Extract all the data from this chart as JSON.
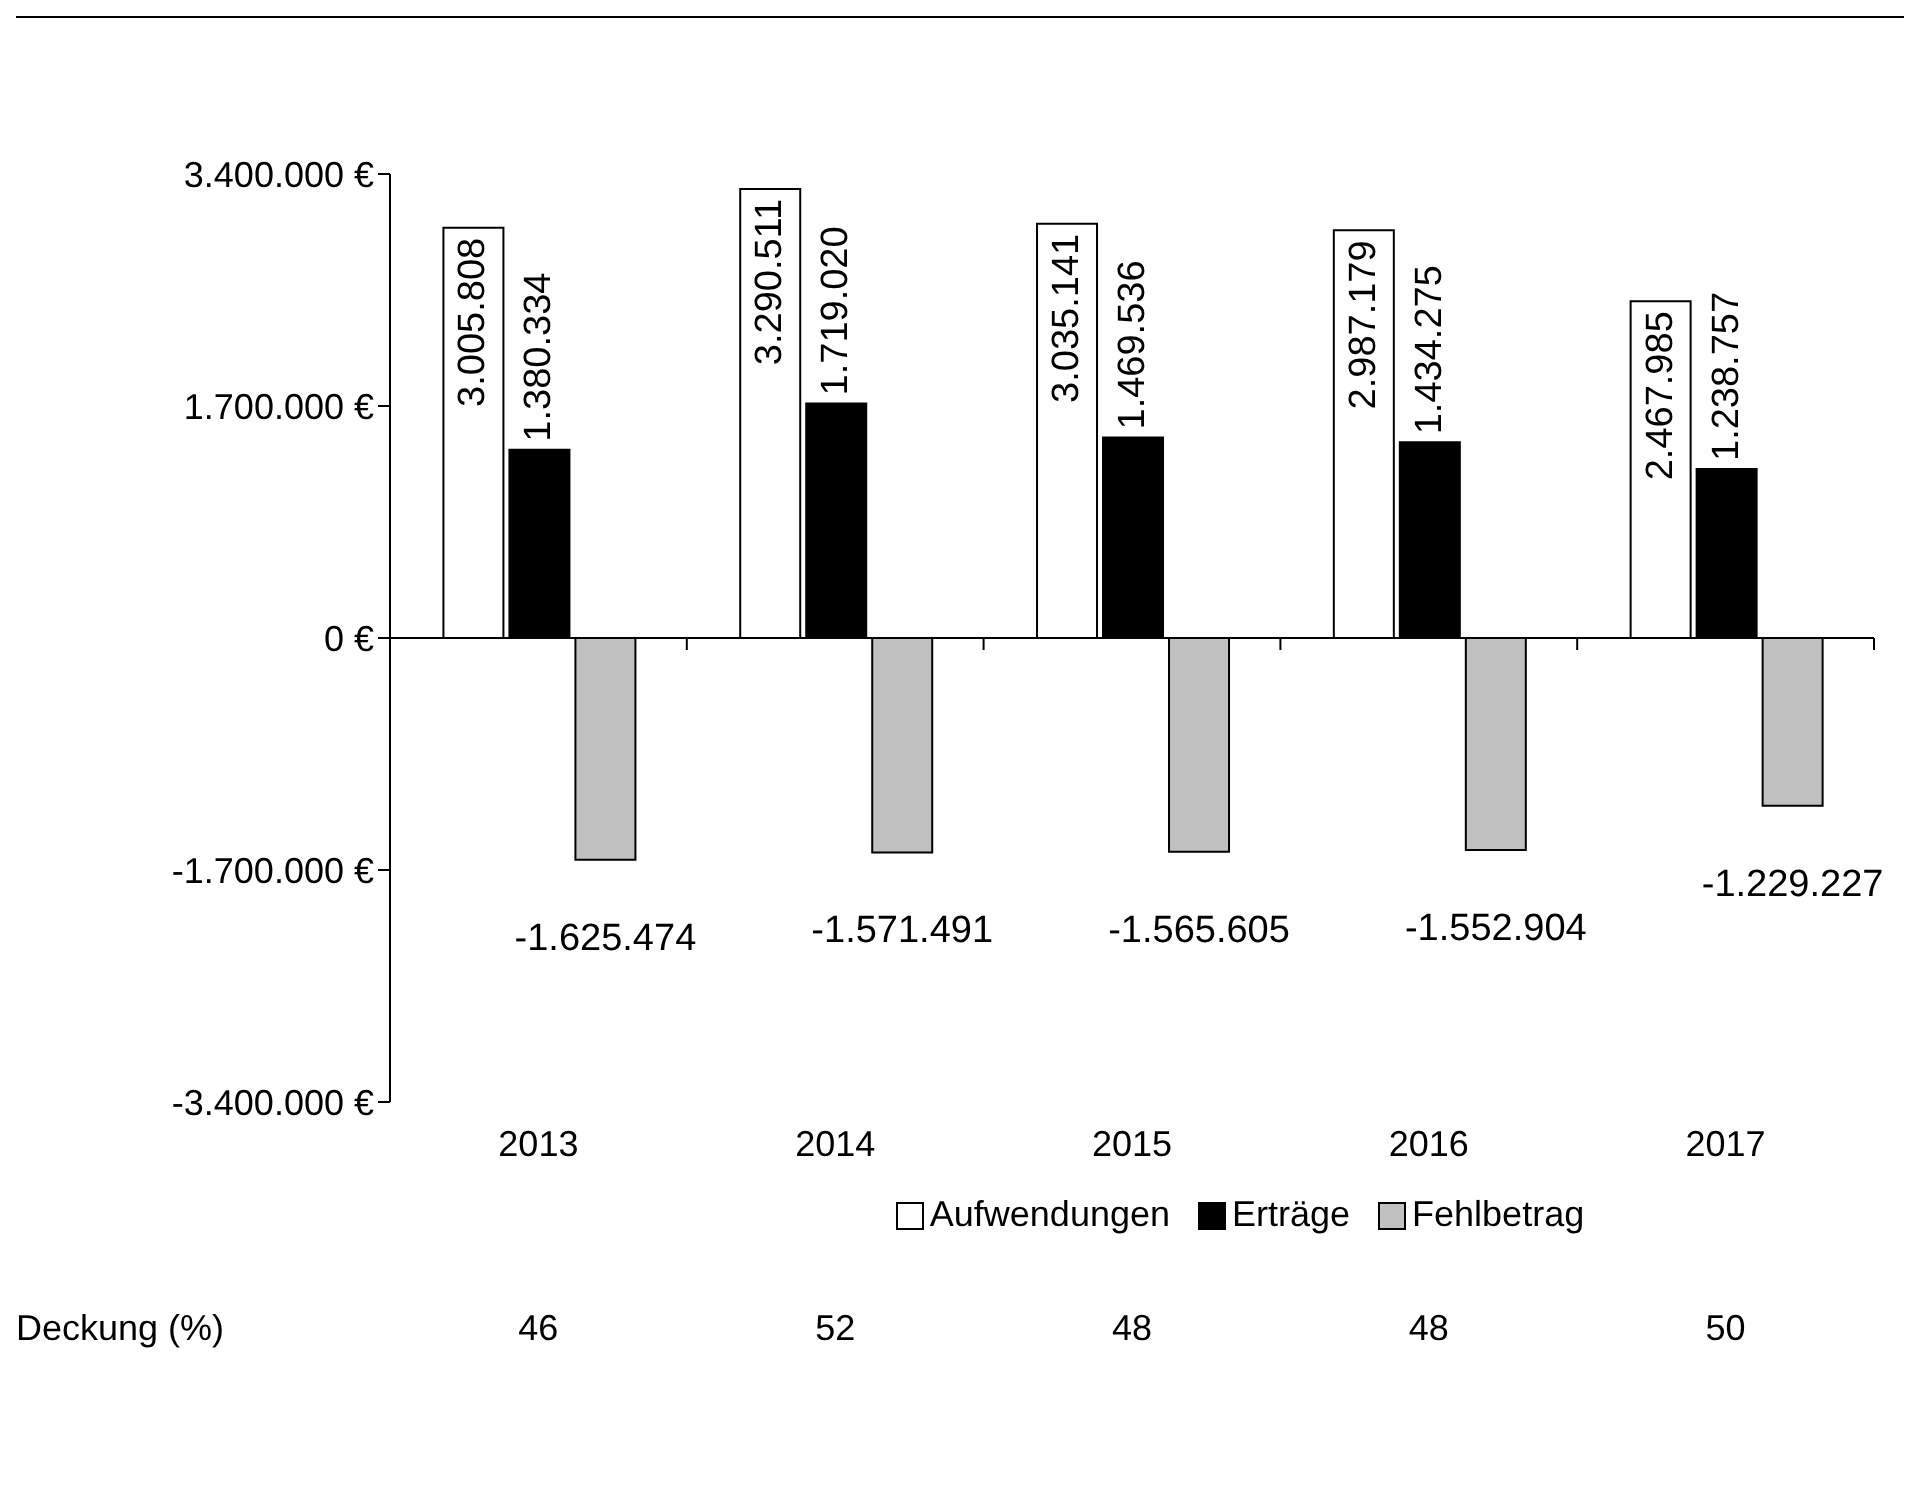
{
  "chart_data": {
    "type": "bar",
    "categories": [
      "2013",
      "2014",
      "2015",
      "2016",
      "2017"
    ],
    "series": [
      {
        "name": "Aufwendungen",
        "color": "#ffffff",
        "values": [
          3005808,
          3290511,
          3035141,
          2987179,
          2467985
        ],
        "value_labels": [
          "3.005.808",
          "3.290.511",
          "3.035.141",
          "2.987.179",
          "2.467.985"
        ]
      },
      {
        "name": "Erträge",
        "color": "#000000",
        "values": [
          1380334,
          1719020,
          1469536,
          1434275,
          1238757
        ],
        "value_labels": [
          "1.380.334",
          "1.719.020",
          "1.469.536",
          "1.434.275",
          "1.238.757"
        ]
      },
      {
        "name": "Fehlbetrag",
        "color": "#c0c0c0",
        "values": [
          -1625474,
          -1571491,
          -1565605,
          -1552904,
          -1229227
        ],
        "value_labels": [
          "-1.625.474",
          "-1.571.491",
          "-1.565.605",
          "-1.552.904",
          "-1.229.227"
        ]
      }
    ],
    "ylim": [
      -3400000,
      3400000
    ],
    "yticks": [
      {
        "value": -3400000,
        "label": "-3.400.000 €"
      },
      {
        "value": -1700000,
        "label": "-1.700.000 €"
      },
      {
        "value": 0,
        "label": "0 €"
      },
      {
        "value": 1700000,
        "label": "1.700.000 €"
      },
      {
        "value": 3400000,
        "label": "3.400.000 €"
      }
    ],
    "legend": "bottom",
    "annotations": [
      "Deckung (%)",
      "46",
      "52",
      "48",
      "48",
      "50"
    ]
  }
}
